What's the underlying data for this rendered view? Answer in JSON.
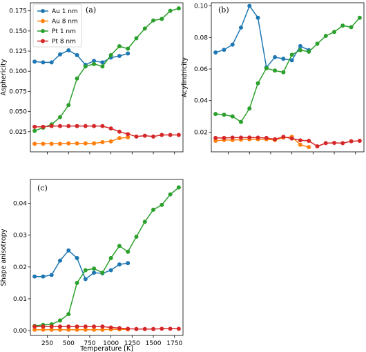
{
  "chart_data": [
    {
      "type": "line",
      "panel_label": "(a)",
      "xlabel": "",
      "ylabel": "Asphericity",
      "xlim": [
        50,
        1850
      ],
      "ylim": [
        0,
        0.185
      ],
      "xticks": [
        250,
        500,
        750,
        1000,
        1250,
        1500,
        1750
      ],
      "show_xtick_labels": false,
      "yticks": [
        0.025,
        0.05,
        0.075,
        0.1,
        0.125,
        0.15,
        0.175
      ],
      "ytick_labels": [
        "0.025",
        "0.050",
        "0.075",
        "0.100",
        "0.125",
        "0.150",
        "0.175"
      ],
      "legend": {
        "placement": "top-left",
        "entries": [
          "Au 1 nm",
          "Au 8 nm",
          "Pt 1 nm",
          "Pt 8 nm"
        ]
      },
      "series": [
        {
          "name": "Au 1 nm",
          "color": "#1f77b4",
          "x": [
            100,
            200,
            300,
            400,
            500,
            600,
            700,
            800,
            900,
            1000,
            1100,
            1200
          ],
          "y": [
            0.112,
            0.111,
            0.111,
            0.121,
            0.126,
            0.12,
            0.108,
            0.113,
            0.111,
            0.117,
            0.119,
            0.122
          ]
        },
        {
          "name": "Au 8 nm",
          "color": "#ff7f0e",
          "x": [
            100,
            200,
            300,
            400,
            500,
            600,
            700,
            800,
            900,
            1000,
            1100,
            1200
          ],
          "y": [
            0.01,
            0.01,
            0.01,
            0.01,
            0.0105,
            0.0105,
            0.0105,
            0.0105,
            0.012,
            0.013,
            0.017,
            0.018
          ]
        },
        {
          "name": "Pt 1 nm",
          "color": "#2ca02c",
          "x": [
            100,
            200,
            300,
            400,
            500,
            600,
            700,
            800,
            900,
            1000,
            1100,
            1200,
            1300,
            1400,
            1500,
            1600,
            1700,
            1800
          ],
          "y": [
            0.026,
            0.03,
            0.034,
            0.043,
            0.058,
            0.091,
            0.106,
            0.109,
            0.106,
            0.12,
            0.131,
            0.128,
            0.141,
            0.153,
            0.163,
            0.165,
            0.175,
            0.178
          ]
        },
        {
          "name": "Pt 8 nm",
          "color": "#d62728",
          "x": [
            100,
            200,
            300,
            400,
            500,
            600,
            700,
            800,
            900,
            1000,
            1100,
            1200,
            1300,
            1400,
            1500,
            1600,
            1700,
            1800
          ],
          "y": [
            0.031,
            0.031,
            0.032,
            0.032,
            0.032,
            0.032,
            0.032,
            0.032,
            0.032,
            0.029,
            0.025,
            0.022,
            0.019,
            0.02,
            0.019,
            0.021,
            0.021,
            0.021
          ]
        }
      ]
    },
    {
      "type": "line",
      "panel_label": "(b)",
      "xlabel": "",
      "ylabel": "Acylindricity",
      "xlim": [
        50,
        1850
      ],
      "ylim": [
        0.0075,
        0.102
      ],
      "xticks": [
        250,
        500,
        750,
        1000,
        1250,
        1500,
        1750
      ],
      "show_xtick_labels": false,
      "yticks": [
        0.02,
        0.04,
        0.06,
        0.08,
        0.1
      ],
      "ytick_labels": [
        "0.02",
        "0.04",
        "0.06",
        "0.08",
        "0.10"
      ],
      "series": [
        {
          "name": "Au 1 nm",
          "color": "#1f77b4",
          "x": [
            100,
            200,
            300,
            400,
            500,
            600,
            700,
            800,
            900,
            1000,
            1100,
            1200
          ],
          "y": [
            0.0705,
            0.0722,
            0.0755,
            0.0863,
            0.1,
            0.0925,
            0.061,
            0.0675,
            0.0665,
            0.0655,
            0.0745,
            0.072
          ]
        },
        {
          "name": "Au 8 nm",
          "color": "#ff7f0e",
          "x": [
            100,
            200,
            300,
            400,
            500,
            600,
            700,
            800,
            900,
            1000,
            1100,
            1200
          ],
          "y": [
            0.0145,
            0.015,
            0.015,
            0.0152,
            0.0155,
            0.0155,
            0.0155,
            0.015,
            0.0165,
            0.017,
            0.012,
            0.0105
          ]
        },
        {
          "name": "Pt 1 nm",
          "color": "#2ca02c",
          "x": [
            100,
            200,
            300,
            400,
            500,
            600,
            700,
            800,
            900,
            1000,
            1100,
            1200,
            1300,
            1400,
            1500,
            1600,
            1700,
            1800
          ],
          "y": [
            0.0315,
            0.031,
            0.03,
            0.0265,
            0.035,
            0.051,
            0.0605,
            0.059,
            0.058,
            0.069,
            0.072,
            0.071,
            0.076,
            0.081,
            0.0835,
            0.0875,
            0.0865,
            0.0925
          ]
        },
        {
          "name": "Pt 8 nm",
          "color": "#d62728",
          "x": [
            100,
            200,
            300,
            400,
            500,
            600,
            700,
            800,
            900,
            1000,
            1100,
            1200,
            1300,
            1400,
            1500,
            1600,
            1700,
            1800
          ],
          "y": [
            0.0163,
            0.0163,
            0.0165,
            0.0165,
            0.0166,
            0.0165,
            0.0163,
            0.0155,
            0.017,
            0.016,
            0.0148,
            0.0145,
            0.011,
            0.013,
            0.0132,
            0.013,
            0.0142,
            0.0145
          ]
        }
      ]
    },
    {
      "type": "line",
      "panel_label": "(c)",
      "xlabel": "Temperature [K]",
      "ylabel": "Shape anisotropy",
      "xlim": [
        50,
        1850
      ],
      "ylim": [
        -0.0015,
        0.0475
      ],
      "xticks": [
        250,
        500,
        750,
        1000,
        1250,
        1500,
        1750
      ],
      "xtick_labels": [
        "250",
        "500",
        "750",
        "1000",
        "1250",
        "1500",
        "1750"
      ],
      "show_xtick_labels": true,
      "yticks": [
        0,
        0.01,
        0.02,
        0.03,
        0.04
      ],
      "ytick_labels": [
        "0.00",
        "0.01",
        "0.02",
        "0.03",
        "0.04"
      ],
      "series": [
        {
          "name": "Au 1 nm",
          "color": "#1f77b4",
          "x": [
            100,
            200,
            300,
            400,
            500,
            600,
            700,
            800,
            900,
            1000,
            1100,
            1200
          ],
          "y": [
            0.017,
            0.017,
            0.0175,
            0.022,
            0.0252,
            0.0228,
            0.0162,
            0.0182,
            0.018,
            0.019,
            0.0208,
            0.0212
          ]
        },
        {
          "name": "Au 8 nm",
          "color": "#ff7f0e",
          "x": [
            100,
            200,
            300,
            400,
            500,
            600,
            700,
            800,
            900,
            1000,
            1100,
            1200
          ],
          "y": [
            0.0003,
            0.0003,
            0.0003,
            0.0003,
            0.0003,
            0.0003,
            0.0003,
            0.0003,
            0.0003,
            0.0004,
            0.0004,
            0.0004
          ]
        },
        {
          "name": "Pt 1 nm",
          "color": "#2ca02c",
          "x": [
            100,
            200,
            300,
            400,
            500,
            600,
            700,
            800,
            900,
            1000,
            1100,
            1200,
            1300,
            1400,
            1500,
            1600,
            1700,
            1800
          ],
          "y": [
            0.0015,
            0.0018,
            0.002,
            0.0032,
            0.0052,
            0.015,
            0.019,
            0.0195,
            0.0182,
            0.0228,
            0.0266,
            0.0248,
            0.0295,
            0.0342,
            0.038,
            0.0395,
            0.0428,
            0.045
          ]
        },
        {
          "name": "Pt 8 nm",
          "color": "#d62728",
          "x": [
            100,
            200,
            300,
            400,
            500,
            600,
            700,
            800,
            900,
            1000,
            1100,
            1200,
            1300,
            1400,
            1500,
            1600,
            1700,
            1800
          ],
          "y": [
            0.0013,
            0.0013,
            0.0013,
            0.0013,
            0.0013,
            0.0013,
            0.0013,
            0.0013,
            0.0013,
            0.001,
            0.0008,
            0.0006,
            0.0005,
            0.0005,
            0.0005,
            0.0006,
            0.0006,
            0.0006
          ]
        }
      ]
    }
  ]
}
